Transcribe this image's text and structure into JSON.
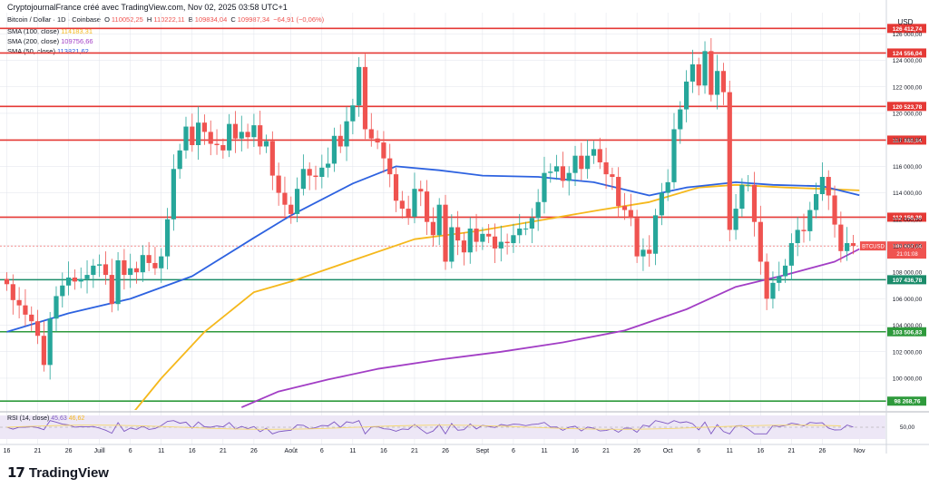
{
  "header": {
    "credit": "CryptojournalFrance créé avec TradingView.com, Nov 02, 2025 03:58 UTC+1",
    "symbol": "Bitcoin / Dollar · 1D · Coinbase",
    "ohlc": {
      "o_label": "O",
      "o": "110052,25",
      "h_label": "H",
      "h": "110222,11",
      "l_label": "B",
      "l": "109834,04",
      "c_label": "C",
      "c": "109987,34",
      "chg": "−64,91 (−0,06%)"
    },
    "indicators": [
      {
        "label": "SMA (100, close)",
        "value": "114183,31",
        "color": "#f5b81c"
      },
      {
        "label": "SMA (200, close)",
        "value": "109756,66",
        "color": "#a23ec5"
      },
      {
        "label": "SMA (50, close)",
        "value": "113821,62",
        "color": "#2d62e0"
      }
    ]
  },
  "axis": {
    "currency": "USD"
  },
  "rsi": {
    "label": "RSI (14, close)",
    "value": "45,63",
    "ma_value": "46,62",
    "level": "50,00"
  },
  "last_price": {
    "ticker": "BTCUSD",
    "price": "109 987,34",
    "countdown": "21:01:08"
  },
  "levels": [
    {
      "value": 126412.74,
      "label": "126 412,74",
      "color": "#e53935"
    },
    {
      "value": 124556.04,
      "label": "124 556,04",
      "color": "#e53935"
    },
    {
      "value": 120523.78,
      "label": "120 523,78",
      "color": "#e53935"
    },
    {
      "value": 117980.94,
      "label": "117 980,94",
      "color": "#e53935"
    },
    {
      "value": 112158.38,
      "label": "112 158,38",
      "color": "#e53935"
    },
    {
      "value": 107436.78,
      "label": "107 436,78",
      "color": "#1b8c6a"
    },
    {
      "value": 103506.83,
      "label": "103 506,83",
      "color": "#2e9a3c"
    },
    {
      "value": 98268.76,
      "label": "98 268,76",
      "color": "#2e9a3c"
    }
  ],
  "brand": {
    "name": "TradingView"
  },
  "colors": {
    "up": "#26a69a",
    "down": "#ef5350",
    "text": "#131722",
    "grid": "#e0e3eb"
  },
  "chart_data": {
    "type": "candlestick",
    "title": "Bitcoin / Dollar · 1D · Coinbase",
    "ylabel": "USD",
    "ylim": [
      97600,
      127600
    ],
    "y_ticks": [
      "100 000,00",
      "102 000,00",
      "104 000,00",
      "106 000,00",
      "108 000,00",
      "110 000,00",
      "112 000,00",
      "114 000,00",
      "116 000,00",
      "118 000,00",
      "120 000,00",
      "122 000,00",
      "124 000,00",
      "126 000,00"
    ],
    "x_ticks": [
      {
        "label": "16",
        "day": 0
      },
      {
        "label": "21",
        "day": 5
      },
      {
        "label": "26",
        "day": 10
      },
      {
        "label": "Juill",
        "day": 15
      },
      {
        "label": "6",
        "day": 20
      },
      {
        "label": "11",
        "day": 25
      },
      {
        "label": "16",
        "day": 30
      },
      {
        "label": "21",
        "day": 35
      },
      {
        "label": "26",
        "day": 40
      },
      {
        "label": "Août",
        "day": 46
      },
      {
        "label": "6",
        "day": 51
      },
      {
        "label": "11",
        "day": 56
      },
      {
        "label": "16",
        "day": 61
      },
      {
        "label": "21",
        "day": 66
      },
      {
        "label": "26",
        "day": 71
      },
      {
        "label": "Sept",
        "day": 77
      },
      {
        "label": "6",
        "day": 82
      },
      {
        "label": "11",
        "day": 87
      },
      {
        "label": "16",
        "day": 92
      },
      {
        "label": "21",
        "day": 97
      },
      {
        "label": "26",
        "day": 102
      },
      {
        "label": "Oct",
        "day": 107
      },
      {
        "label": "6",
        "day": 112
      },
      {
        "label": "11",
        "day": 117
      },
      {
        "label": "16",
        "day": 122
      },
      {
        "label": "21",
        "day": 127
      },
      {
        "label": "26",
        "day": 132
      },
      {
        "label": "Nov",
        "day": 138
      }
    ],
    "candles_close": [
      107100,
      105900,
      105500,
      104800,
      104300,
      103200,
      101000,
      104500,
      106200,
      107000,
      107600,
      107300,
      107500,
      107800,
      108500,
      108600,
      107800,
      105600,
      108900,
      107800,
      108300,
      108000,
      109300,
      108700,
      108300,
      109200,
      112000,
      115800,
      117200,
      119000,
      117600,
      119300,
      118600,
      117700,
      117600,
      117200,
      119200,
      118100,
      118600,
      118200,
      119100,
      117500,
      117900,
      115300,
      114000,
      113100,
      112400,
      114300,
      115800,
      115300,
      115200,
      115900,
      116200,
      118300,
      117500,
      119400,
      120600,
      123500,
      118800,
      118100,
      117800,
      116600,
      115400,
      113400,
      112800,
      112200,
      114300,
      114100,
      111800,
      110800,
      113100,
      108800,
      111400,
      110400,
      109500,
      111300,
      110300,
      110900,
      110700,
      109800,
      110300,
      110200,
      110800,
      111300,
      111300,
      112100,
      113300,
      115500,
      115600,
      116000,
      114900,
      115500,
      116800,
      115800,
      116800,
      117300,
      116300,
      115400,
      115200,
      113000,
      112700,
      112100,
      109200,
      109700,
      109400,
      112300,
      114000,
      114800,
      118800,
      120300,
      122400,
      123700,
      122100,
      124700,
      121400,
      123200,
      121600,
      111200,
      112800,
      114600,
      114600,
      111800,
      108800,
      106000,
      107200,
      107700,
      108500,
      110200,
      111200,
      111100,
      112700,
      113900,
      115200,
      113800,
      111600,
      109600,
      110200,
      109987
    ],
    "sma50_points": [
      [
        0,
        103500
      ],
      [
        10,
        104900
      ],
      [
        20,
        106000
      ],
      [
        30,
        107700
      ],
      [
        40,
        110600
      ],
      [
        46,
        112300
      ],
      [
        56,
        114700
      ],
      [
        63,
        116000
      ],
      [
        70,
        115700
      ],
      [
        77,
        115300
      ],
      [
        86,
        115200
      ],
      [
        95,
        114800
      ],
      [
        104,
        113800
      ],
      [
        110,
        114400
      ],
      [
        118,
        114800
      ],
      [
        124,
        114600
      ],
      [
        132,
        114500
      ],
      [
        138,
        113821.62
      ]
    ],
    "sma100_points": [
      [
        18,
        96000
      ],
      [
        25,
        100000
      ],
      [
        32,
        103500
      ],
      [
        40,
        106500
      ],
      [
        46,
        107300
      ],
      [
        56,
        108900
      ],
      [
        66,
        110500
      ],
      [
        76,
        111100
      ],
      [
        86,
        111900
      ],
      [
        96,
        112700
      ],
      [
        104,
        113300
      ],
      [
        112,
        114400
      ],
      [
        118,
        114600
      ],
      [
        126,
        114400
      ],
      [
        132,
        114300
      ],
      [
        138,
        114183.31
      ]
    ],
    "sma200_points": [
      [
        38,
        97800
      ],
      [
        44,
        99000
      ],
      [
        52,
        99900
      ],
      [
        60,
        100700
      ],
      [
        70,
        101400
      ],
      [
        80,
        102000
      ],
      [
        90,
        102700
      ],
      [
        100,
        103600
      ],
      [
        110,
        105200
      ],
      [
        118,
        106900
      ],
      [
        126,
        107800
      ],
      [
        134,
        108800
      ],
      [
        138,
        109756.66
      ]
    ]
  }
}
